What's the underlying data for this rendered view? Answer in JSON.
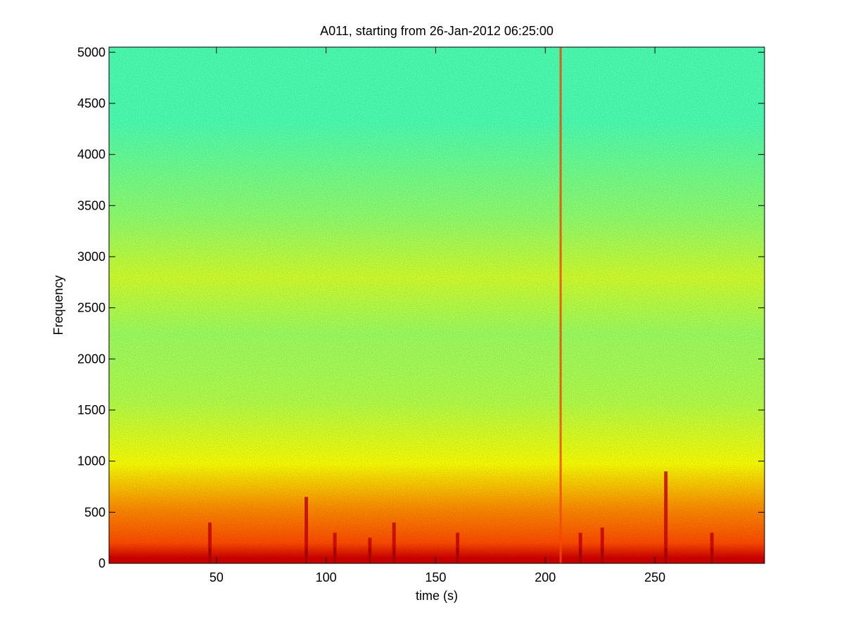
{
  "chart_data": {
    "type": "heatmap",
    "title": "A011, starting from 26-Jan-2012 06:25:00",
    "xlabel": "time (s)",
    "ylabel": "Frequency",
    "xlim": [
      1,
      300
    ],
    "ylim": [
      0,
      5050
    ],
    "xticks": [
      50,
      100,
      150,
      200,
      250
    ],
    "yticks": [
      0,
      500,
      1000,
      1500,
      2000,
      2500,
      3000,
      3500,
      4000,
      4500,
      5000
    ],
    "colormap": "jet",
    "color_bands": [
      {
        "freq_from": 0,
        "freq_to": 100,
        "level": 0.92
      },
      {
        "freq_from": 100,
        "freq_to": 300,
        "level": 0.8
      },
      {
        "freq_from": 300,
        "freq_to": 750,
        "level": 0.74
      },
      {
        "freq_from": 750,
        "freq_to": 1200,
        "level": 0.62
      },
      {
        "freq_from": 1200,
        "freq_to": 2000,
        "level": 0.55
      },
      {
        "freq_from": 2000,
        "freq_to": 2500,
        "level": 0.53
      },
      {
        "freq_from": 2500,
        "freq_to": 3100,
        "level": 0.58
      },
      {
        "freq_from": 3100,
        "freq_to": 3600,
        "level": 0.52
      },
      {
        "freq_from": 3600,
        "freq_to": 5050,
        "level": 0.45
      }
    ],
    "broadband_events": [
      {
        "time": 47,
        "max_freq": 400
      },
      {
        "time": 91,
        "max_freq": 650
      },
      {
        "time": 104,
        "max_freq": 300
      },
      {
        "time": 120,
        "max_freq": 250
      },
      {
        "time": 131,
        "max_freq": 400
      },
      {
        "time": 160,
        "max_freq": 300
      },
      {
        "time": 207,
        "max_freq": 5050
      },
      {
        "time": 216,
        "max_freq": 300
      },
      {
        "time": 226,
        "max_freq": 350
      },
      {
        "time": 255,
        "max_freq": 900
      },
      {
        "time": 276,
        "max_freq": 300
      }
    ],
    "grid": false,
    "legend": "none"
  }
}
